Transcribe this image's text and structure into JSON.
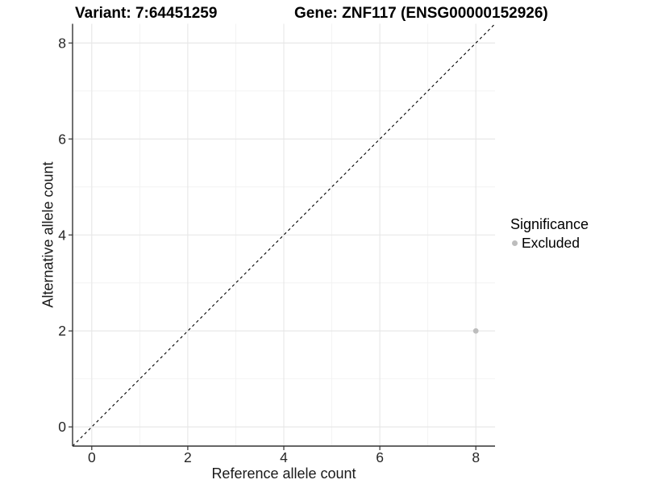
{
  "titles": {
    "variant": "Variant: 7:64451259",
    "gene": "Gene: ZNF117 (ENSG00000152926)"
  },
  "chart_data": {
    "type": "scatter",
    "xlabel": "Reference allele count",
    "ylabel": "Alternative allele count",
    "xlim": [
      -0.4,
      8.4
    ],
    "ylim": [
      -0.4,
      8.4
    ],
    "xticks": [
      0,
      2,
      4,
      6,
      8
    ],
    "yticks": [
      0,
      2,
      4,
      6,
      8
    ],
    "xminor": [
      1,
      3,
      5,
      7
    ],
    "yminor": [
      1,
      3,
      5,
      7
    ],
    "grid": "major-and-minor",
    "identity_line": {
      "slope": 1,
      "intercept": 0,
      "style": "dashed",
      "color": "#000000"
    },
    "series": [
      {
        "name": "Excluded",
        "points": [
          {
            "x": 8,
            "y": 2
          }
        ]
      }
    ],
    "legend_position": "right"
  },
  "legend": {
    "title": "Significance",
    "items": [
      {
        "label": "Excluded",
        "color": "#bdbdbd"
      }
    ]
  },
  "colors": {
    "background": "#ffffff",
    "grid_major": "#e6e6e6",
    "grid_minor": "#f2f2f2",
    "axis_line": "#333333",
    "tick_mark": "#333333",
    "tick_text": "#262626",
    "point_excluded": "#bdbdbd"
  }
}
